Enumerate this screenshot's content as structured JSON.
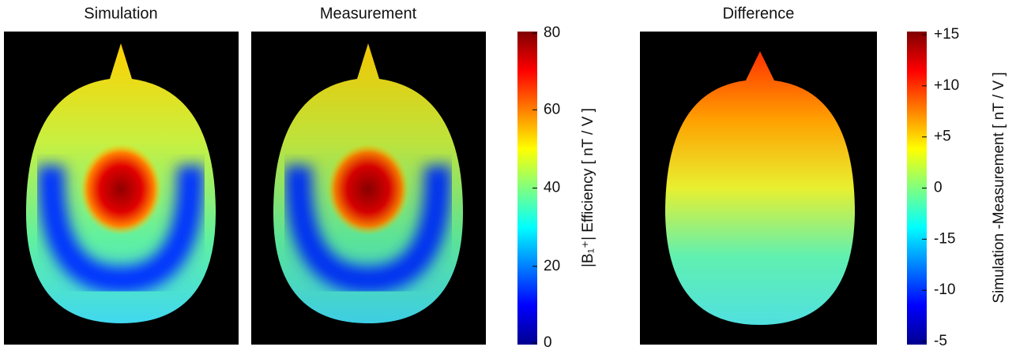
{
  "panels": [
    {
      "title": "Simulation"
    },
    {
      "title": "Measurement"
    },
    {
      "title": "Difference"
    }
  ],
  "colorbars": [
    {
      "label": "|B₁⁺|   Efficiency  [ nT / V ]",
      "ylim": [
        0,
        80
      ],
      "yticks": [
        0,
        20,
        40,
        60,
        80
      ]
    },
    {
      "label": "Simulation -Measurement   [ nT / V ]",
      "ticks": [
        {
          "value": 15,
          "label": "+15"
        },
        {
          "value": 10,
          "label": "+10"
        },
        {
          "value": 5,
          "label": "+5"
        },
        0,
        -15,
        -10,
        -5
      ]
    }
  ]
}
